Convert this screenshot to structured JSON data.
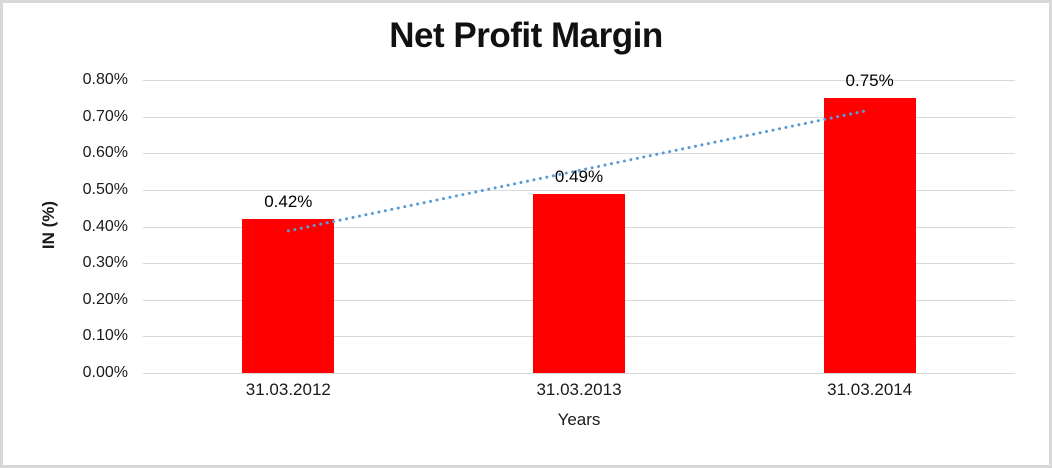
{
  "chart_data": {
    "type": "bar",
    "title": "Net Profit Margin",
    "xlabel": "Years",
    "ylabel": "IN (%)",
    "categories": [
      "31.03.2012",
      "31.03.2013",
      "31.03.2014"
    ],
    "values": [
      0.42,
      0.49,
      0.75
    ],
    "data_labels": [
      "0.42%",
      "0.49%",
      "0.75%"
    ],
    "y_ticks": [
      "0.00%",
      "0.10%",
      "0.20%",
      "0.30%",
      "0.40%",
      "0.50%",
      "0.60%",
      "0.70%",
      "0.80%"
    ],
    "ylim": [
      0,
      0.8
    ],
    "grid": "horizontal",
    "legend": "none",
    "bar_color": "#FF0000",
    "gridline_color": "#D9D9D9",
    "text_color": "#1A1A1A",
    "border_color": "#D8D8D8",
    "trendline": {
      "type": "linear",
      "style": "dotted",
      "color": "#5B9BD5",
      "start_value": 0.388,
      "end_value": 0.718
    }
  }
}
